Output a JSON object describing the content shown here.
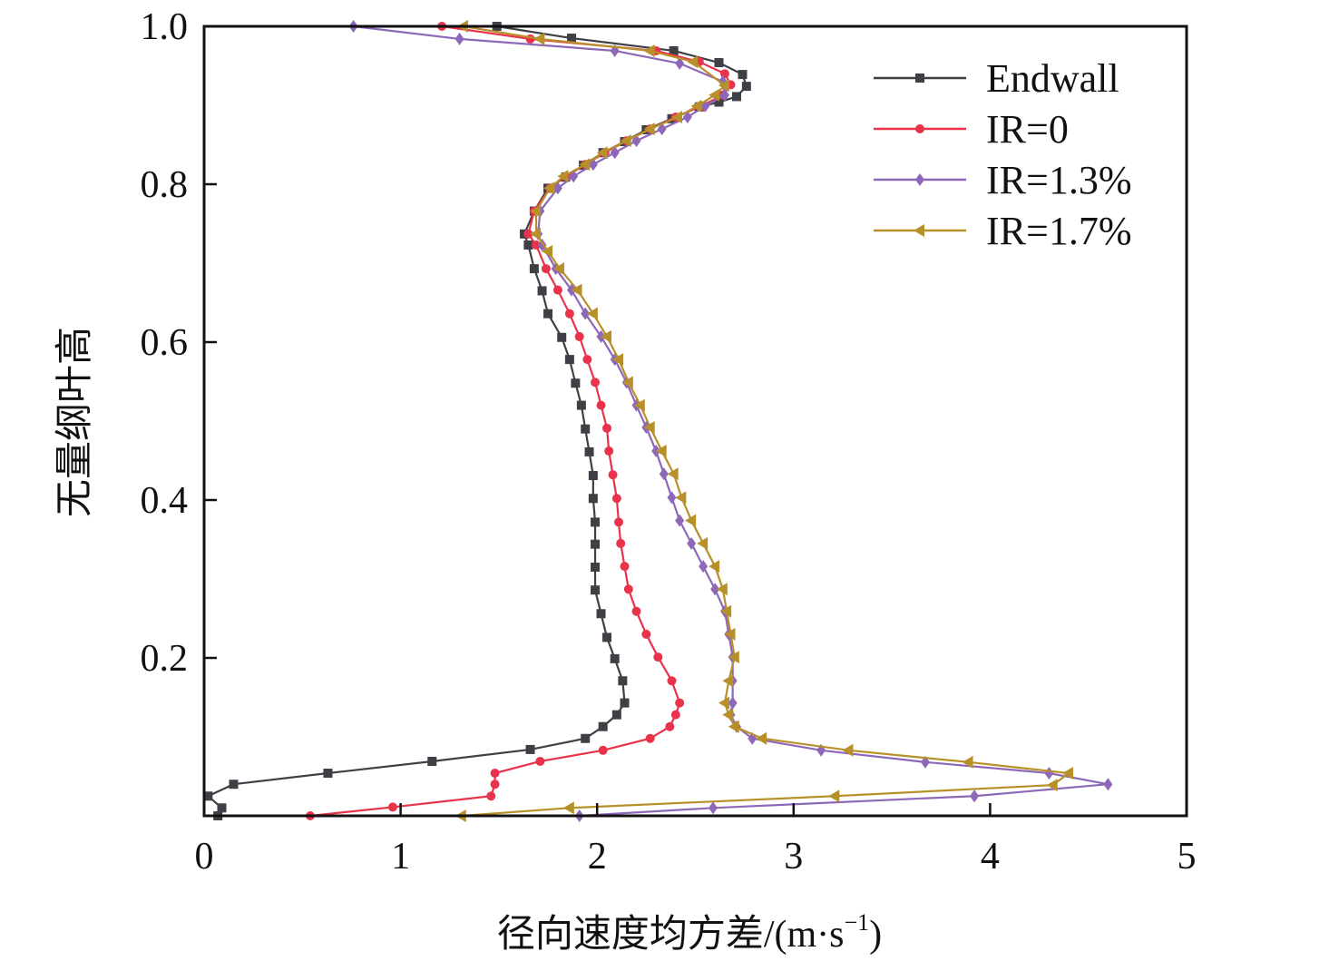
{
  "chart_data": {
    "type": "line",
    "title": "",
    "xlabel_main": "径向速度均方差/(m·s",
    "xlabel_sup": "−1",
    "xlabel_end": ")",
    "ylabel": "无量纲叶高",
    "xlim": [
      0,
      5
    ],
    "ylim": [
      0,
      1.0
    ],
    "xticks": [
      "0",
      "1",
      "2",
      "3",
      "4",
      "5"
    ],
    "yticks": [
      "0.2",
      "0.4",
      "0.6",
      "0.8",
      "1.0"
    ],
    "ytick_values": [
      0.2,
      0.4,
      0.6,
      0.8,
      1.0
    ],
    "grid": false,
    "legend_position": "top-right",
    "series": [
      {
        "name": "Endwall",
        "color": "#3f3f46",
        "marker": "square",
        "points": [
          [
            0.07,
            0.0
          ],
          [
            0.09,
            0.01
          ],
          [
            0.02,
            0.025
          ],
          [
            0.15,
            0.04
          ],
          [
            0.63,
            0.054
          ],
          [
            1.16,
            0.069
          ],
          [
            1.66,
            0.084
          ],
          [
            1.94,
            0.098
          ],
          [
            2.03,
            0.113
          ],
          [
            2.1,
            0.128
          ],
          [
            2.14,
            0.143
          ],
          [
            2.13,
            0.171
          ],
          [
            2.09,
            0.199
          ],
          [
            2.05,
            0.226
          ],
          [
            2.02,
            0.256
          ],
          [
            1.99,
            0.286
          ],
          [
            1.99,
            0.315
          ],
          [
            1.99,
            0.344
          ],
          [
            1.99,
            0.372
          ],
          [
            1.98,
            0.402
          ],
          [
            1.98,
            0.431
          ],
          [
            1.96,
            0.461
          ],
          [
            1.94,
            0.49
          ],
          [
            1.92,
            0.52
          ],
          [
            1.89,
            0.548
          ],
          [
            1.86,
            0.578
          ],
          [
            1.82,
            0.606
          ],
          [
            1.75,
            0.636
          ],
          [
            1.72,
            0.665
          ],
          [
            1.68,
            0.693
          ],
          [
            1.65,
            0.723
          ],
          [
            1.63,
            0.737
          ],
          [
            1.68,
            0.766
          ],
          [
            1.75,
            0.795
          ],
          [
            1.84,
            0.809
          ],
          [
            1.93,
            0.824
          ],
          [
            2.03,
            0.84
          ],
          [
            2.14,
            0.854
          ],
          [
            2.25,
            0.869
          ],
          [
            2.38,
            0.883
          ],
          [
            2.52,
            0.898
          ],
          [
            2.62,
            0.904
          ],
          [
            2.71,
            0.911
          ],
          [
            2.76,
            0.924
          ],
          [
            2.74,
            0.939
          ],
          [
            2.62,
            0.954
          ],
          [
            2.39,
            0.969
          ],
          [
            1.87,
            0.985
          ],
          [
            1.49,
            1.0
          ]
        ]
      },
      {
        "name": "IR=0",
        "color": "#e8334a",
        "marker": "circle",
        "points": [
          [
            0.54,
            0.0
          ],
          [
            0.96,
            0.011
          ],
          [
            1.46,
            0.025
          ],
          [
            1.48,
            0.04
          ],
          [
            1.48,
            0.054
          ],
          [
            1.71,
            0.069
          ],
          [
            2.03,
            0.083
          ],
          [
            2.27,
            0.098
          ],
          [
            2.37,
            0.113
          ],
          [
            2.4,
            0.128
          ],
          [
            2.42,
            0.143
          ],
          [
            2.38,
            0.171
          ],
          [
            2.31,
            0.201
          ],
          [
            2.25,
            0.23
          ],
          [
            2.2,
            0.259
          ],
          [
            2.16,
            0.287
          ],
          [
            2.14,
            0.316
          ],
          [
            2.12,
            0.345
          ],
          [
            2.11,
            0.372
          ],
          [
            2.1,
            0.402
          ],
          [
            2.08,
            0.432
          ],
          [
            2.06,
            0.462
          ],
          [
            2.05,
            0.491
          ],
          [
            2.02,
            0.52
          ],
          [
            1.99,
            0.549
          ],
          [
            1.95,
            0.578
          ],
          [
            1.91,
            0.607
          ],
          [
            1.86,
            0.636
          ],
          [
            1.8,
            0.666
          ],
          [
            1.74,
            0.693
          ],
          [
            1.69,
            0.723
          ],
          [
            1.65,
            0.737
          ],
          [
            1.68,
            0.766
          ],
          [
            1.76,
            0.795
          ],
          [
            1.84,
            0.81
          ],
          [
            1.94,
            0.825
          ],
          [
            2.04,
            0.84
          ],
          [
            2.15,
            0.855
          ],
          [
            2.27,
            0.87
          ],
          [
            2.4,
            0.885
          ],
          [
            2.53,
            0.899
          ],
          [
            2.64,
            0.913
          ],
          [
            2.68,
            0.926
          ],
          [
            2.65,
            0.94
          ],
          [
            2.52,
            0.955
          ],
          [
            2.3,
            0.969
          ],
          [
            1.66,
            0.984
          ],
          [
            1.21,
            1.0
          ]
        ]
      },
      {
        "name": "IR=1.3%",
        "color": "#8e68b8",
        "marker": "diamond",
        "points": [
          [
            1.91,
            0.0
          ],
          [
            2.59,
            0.01
          ],
          [
            3.92,
            0.025
          ],
          [
            4.6,
            0.04
          ],
          [
            4.3,
            0.054
          ],
          [
            3.67,
            0.068
          ],
          [
            3.14,
            0.083
          ],
          [
            2.79,
            0.098
          ],
          [
            2.71,
            0.113
          ],
          [
            2.68,
            0.128
          ],
          [
            2.69,
            0.143
          ],
          [
            2.69,
            0.171
          ],
          [
            2.69,
            0.201
          ],
          [
            2.67,
            0.23
          ],
          [
            2.65,
            0.259
          ],
          [
            2.6,
            0.287
          ],
          [
            2.54,
            0.316
          ],
          [
            2.48,
            0.345
          ],
          [
            2.42,
            0.374
          ],
          [
            2.38,
            0.403
          ],
          [
            2.34,
            0.433
          ],
          [
            2.3,
            0.462
          ],
          [
            2.25,
            0.492
          ],
          [
            2.2,
            0.52
          ],
          [
            2.15,
            0.549
          ],
          [
            2.09,
            0.578
          ],
          [
            2.02,
            0.607
          ],
          [
            1.94,
            0.636
          ],
          [
            1.87,
            0.666
          ],
          [
            1.79,
            0.693
          ],
          [
            1.72,
            0.723
          ],
          [
            1.7,
            0.737
          ],
          [
            1.71,
            0.766
          ],
          [
            1.8,
            0.795
          ],
          [
            1.88,
            0.81
          ],
          [
            1.98,
            0.825
          ],
          [
            2.09,
            0.84
          ],
          [
            2.2,
            0.855
          ],
          [
            2.33,
            0.87
          ],
          [
            2.46,
            0.885
          ],
          [
            2.55,
            0.899
          ],
          [
            2.65,
            0.913
          ],
          [
            2.64,
            0.93
          ],
          [
            2.42,
            0.953
          ],
          [
            2.09,
            0.969
          ],
          [
            1.3,
            0.984
          ],
          [
            0.76,
            1.0
          ]
        ]
      },
      {
        "name": "IR=1.7%",
        "color": "#b8902a",
        "marker": "triangle-left",
        "points": [
          [
            1.31,
            0.0
          ],
          [
            1.86,
            0.01
          ],
          [
            3.21,
            0.025
          ],
          [
            4.32,
            0.039
          ],
          [
            4.4,
            0.054
          ],
          [
            3.89,
            0.068
          ],
          [
            3.28,
            0.083
          ],
          [
            2.84,
            0.098
          ],
          [
            2.7,
            0.113
          ],
          [
            2.67,
            0.128
          ],
          [
            2.65,
            0.143
          ],
          [
            2.67,
            0.171
          ],
          [
            2.7,
            0.201
          ],
          [
            2.68,
            0.23
          ],
          [
            2.66,
            0.259
          ],
          [
            2.64,
            0.287
          ],
          [
            2.6,
            0.316
          ],
          [
            2.54,
            0.345
          ],
          [
            2.48,
            0.374
          ],
          [
            2.43,
            0.403
          ],
          [
            2.39,
            0.433
          ],
          [
            2.33,
            0.462
          ],
          [
            2.27,
            0.492
          ],
          [
            2.22,
            0.52
          ],
          [
            2.16,
            0.549
          ],
          [
            2.11,
            0.578
          ],
          [
            2.05,
            0.607
          ],
          [
            1.98,
            0.636
          ],
          [
            1.9,
            0.666
          ],
          [
            1.81,
            0.693
          ],
          [
            1.75,
            0.715
          ],
          [
            1.69,
            0.737
          ],
          [
            1.69,
            0.766
          ],
          [
            1.76,
            0.795
          ],
          [
            1.83,
            0.81
          ],
          [
            1.94,
            0.825
          ],
          [
            2.03,
            0.84
          ],
          [
            2.15,
            0.855
          ],
          [
            2.27,
            0.87
          ],
          [
            2.41,
            0.885
          ],
          [
            2.51,
            0.899
          ],
          [
            2.6,
            0.913
          ],
          [
            2.65,
            0.925
          ],
          [
            2.49,
            0.955
          ],
          [
            2.27,
            0.969
          ],
          [
            1.71,
            0.984
          ],
          [
            1.32,
            1.0
          ]
        ]
      }
    ]
  }
}
